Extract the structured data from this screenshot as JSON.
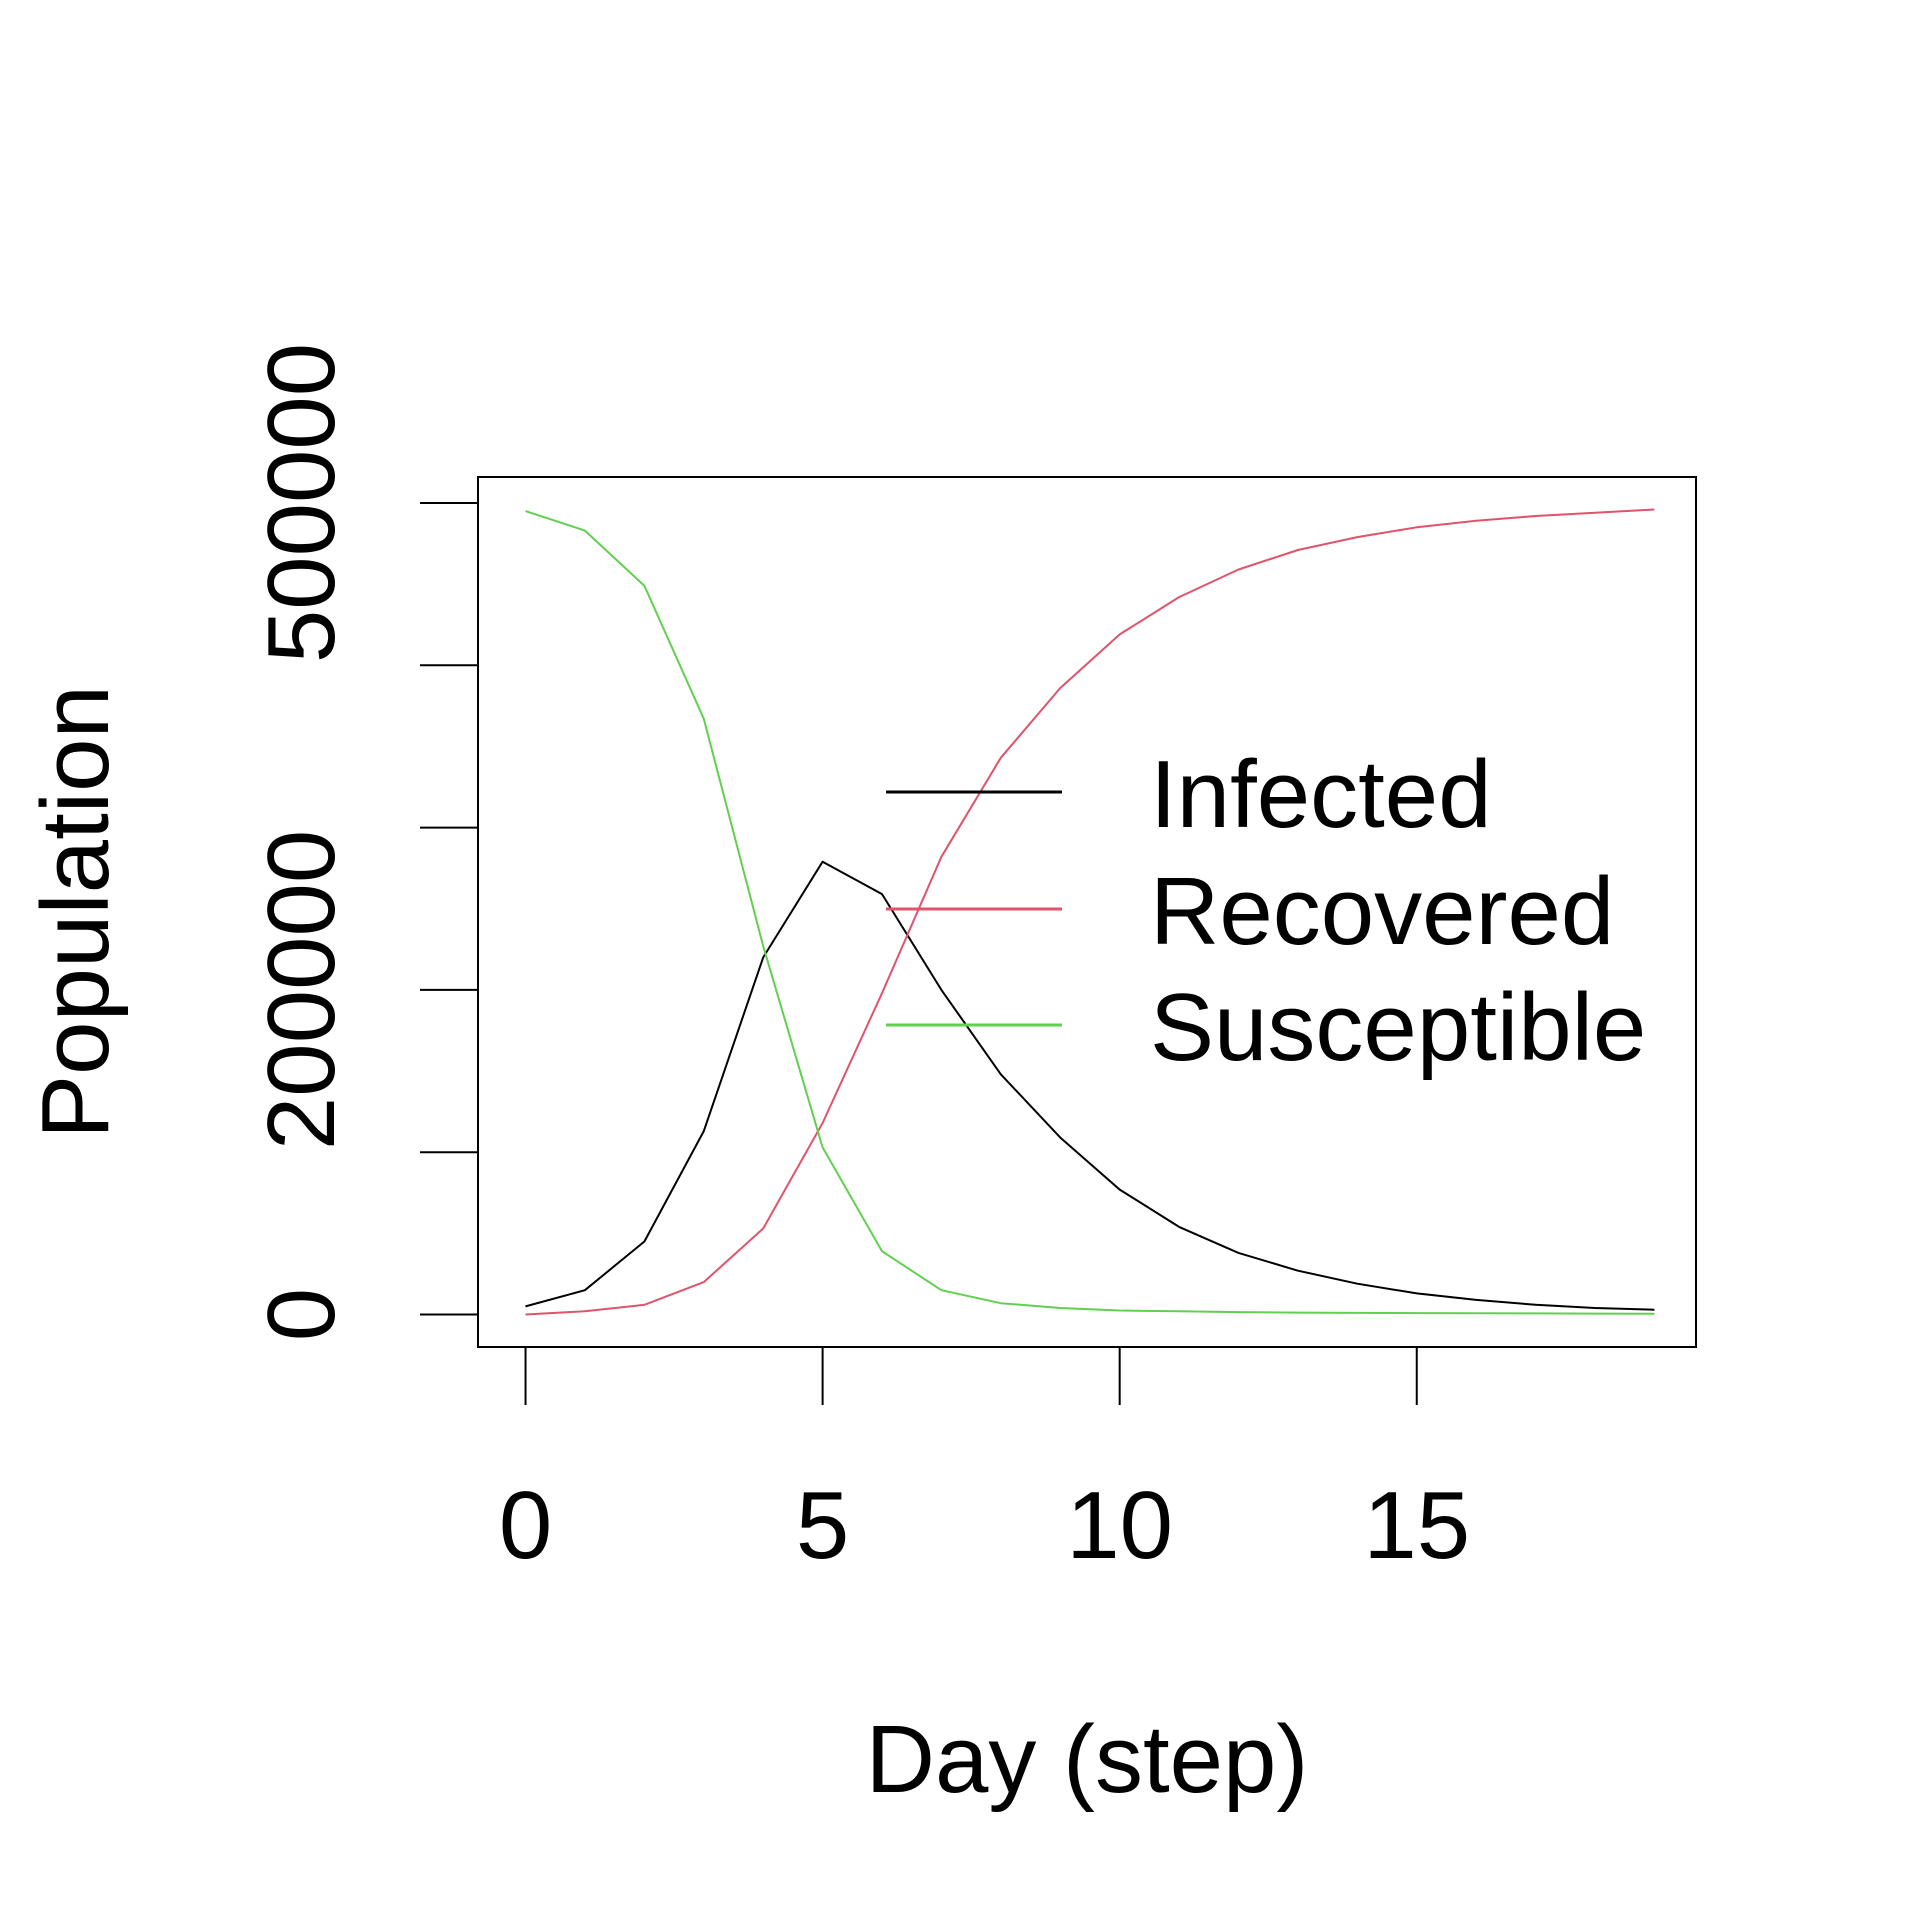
{
  "chart_data": {
    "type": "line",
    "title": "",
    "xlabel": "Day (step)",
    "ylabel": "Population",
    "xlim": [
      -0.8,
      19.7
    ],
    "ylim": [
      -20000,
      516000
    ],
    "xticks": [
      0,
      5,
      10,
      15
    ],
    "yticks": [
      0,
      100000,
      200000,
      300000,
      400000,
      500000
    ],
    "ytick_labels": [
      "0",
      "",
      "200000",
      "",
      "",
      "500000"
    ],
    "grid": false,
    "legend_position": "center-right",
    "x": [
      0,
      1,
      2,
      3,
      4,
      5,
      6,
      7,
      8,
      9,
      10,
      11,
      12,
      13,
      14,
      15,
      16,
      17,
      18,
      19
    ],
    "series": [
      {
        "name": "Infected",
        "color": "#000000",
        "values": [
          5000,
          15000,
          45000,
          113000,
          220000,
          279000,
          259000,
          200000,
          148000,
          109000,
          77000,
          54000,
          38000,
          27000,
          19000,
          13000,
          9000,
          6000,
          4000,
          3000
        ]
      },
      {
        "name": "Recovered",
        "color": "#df536b",
        "values": [
          0,
          2000,
          6000,
          20000,
          53000,
          118000,
          198000,
          282000,
          343000,
          386000,
          419000,
          442000,
          459000,
          471000,
          479000,
          485000,
          489000,
          492000,
          494000,
          496000
        ]
      },
      {
        "name": "Susceptible",
        "color": "#61d04f",
        "values": [
          495000,
          483000,
          449000,
          367000,
          227000,
          103000,
          39000,
          15000,
          7000,
          4000,
          2500,
          2000,
          1500,
          1200,
          1000,
          900,
          800,
          700,
          600,
          500
        ]
      }
    ]
  }
}
